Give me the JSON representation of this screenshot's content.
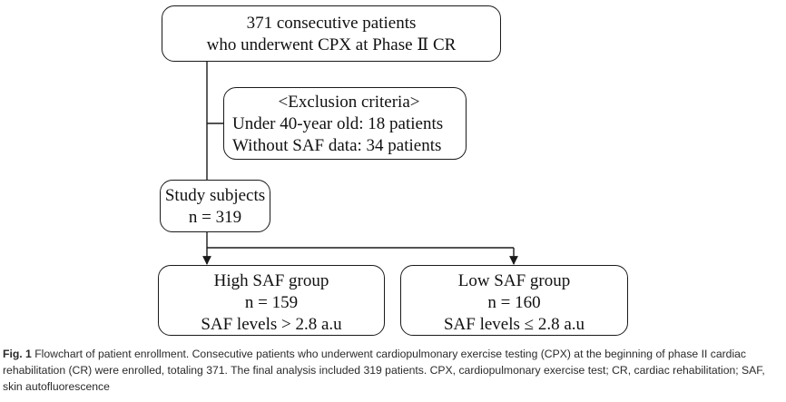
{
  "flowchart": {
    "top": {
      "line1": "371 consecutive patients",
      "line2": "who underwent CPX at Phase Ⅱ CR"
    },
    "exclusion": {
      "title": "<Exclusion criteria>",
      "line1": "Under 40-year old: 18 patients",
      "line2": "Without SAF data: 34 patients"
    },
    "study": {
      "line1": "Study subjects",
      "line2": "n = 319"
    },
    "high": {
      "line1": "High SAF group",
      "line2": "n = 159",
      "line3": "SAF levels > 2.8 a.u"
    },
    "low": {
      "line1": "Low SAF group",
      "line2": "n = 160",
      "line3": "SAF levels ≤ 2.8 a.u"
    }
  },
  "caption": {
    "label": "Fig. 1",
    "text": "Flowchart of patient enrollment. Consecutive patients who underwent cardiopulmonary exercise testing (CPX) at the beginning of phase II cardiac rehabilitation (CR) were enrolled, totaling 371. The final analysis included 319 patients. CPX, cardiopulmonary exercise test; CR, cardiac rehabilitation; SAF, skin autofluorescence"
  }
}
